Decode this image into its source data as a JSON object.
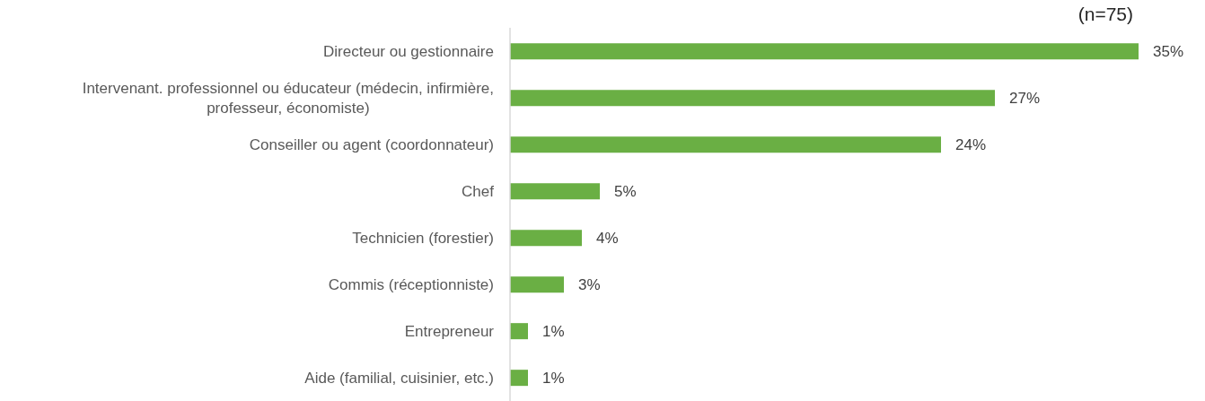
{
  "chart_data": {
    "type": "bar",
    "title": "(n=75)",
    "orientation": "horizontal",
    "categories": [
      "Directeur ou gestionnaire",
      "Intervenant. professionnel ou éducateur (médecin, infirmière, professeur, économiste)",
      "Conseiller ou agent (coordonnateur)",
      "Chef",
      "Technicien (forestier)",
      "Commis (réceptionniste)",
      "Entrepreneur",
      "Aide (familial, cuisinier, etc.)"
    ],
    "values": [
      35,
      27,
      24,
      5,
      4,
      3,
      1,
      1
    ],
    "value_labels": [
      "35%",
      "27%",
      "24%",
      "5%",
      "4%",
      "3%",
      "1%",
      "1%"
    ],
    "color": "#6aaf44",
    "tick_labels": "y"
  }
}
